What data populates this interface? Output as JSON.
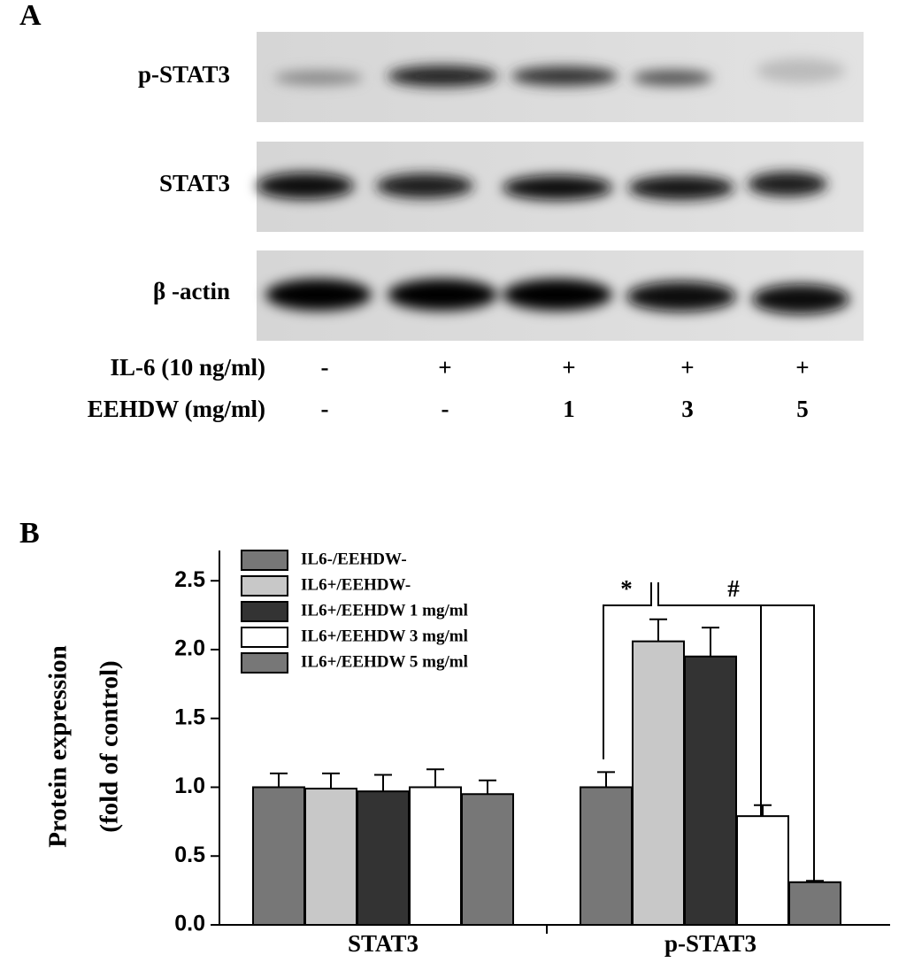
{
  "blot": {
    "panel_label": "A",
    "rows": [
      "p-STAT3",
      "STAT3",
      "β -actin"
    ],
    "treatments": [
      {
        "label": "IL-6 (10 ng/ml)",
        "lanes": [
          "-",
          "+",
          "+",
          "+",
          "+"
        ]
      },
      {
        "label": "EEHDW (mg/ml)",
        "lanes": [
          "-",
          "-",
          "1",
          "3",
          "5"
        ]
      }
    ]
  },
  "chart_data": {
    "type": "bar",
    "panel_label": "B",
    "y_label": [
      "Protein expression",
      "(fold of  control)"
    ],
    "categories": [
      "STAT3",
      "p-STAT3"
    ],
    "series": [
      {
        "name": "IL6-/EEHDW-",
        "color": "#777777",
        "values": [
          1.0,
          1.0
        ],
        "errors": [
          0.1,
          0.11
        ]
      },
      {
        "name": "IL6+/EEHDW-",
        "color": "#c8c8c8",
        "values": [
          0.99,
          2.06
        ],
        "errors": [
          0.11,
          0.16
        ]
      },
      {
        "name": "IL6+/EEHDW 1 mg/ml",
        "color": "#333333",
        "values": [
          0.97,
          1.95
        ],
        "errors": [
          0.12,
          0.21
        ]
      },
      {
        "name": "IL6+/EEHDW 3 mg/ml",
        "color": "#ffffff",
        "values": [
          1.0,
          0.79
        ],
        "errors": [
          0.13,
          0.08
        ]
      },
      {
        "name": "IL6+/EEHDW 5 mg/ml",
        "color": "#777777",
        "values": [
          0.95,
          0.31
        ],
        "errors": [
          0.1,
          0.01
        ]
      }
    ],
    "annotations": [
      "*",
      "#"
    ],
    "ylim": [
      0,
      2.72
    ],
    "yticks": [
      {
        "value": 0,
        "label": "0.0"
      },
      {
        "value": 0.5,
        "label": "0.5"
      },
      {
        "value": 1,
        "label": "1.0"
      },
      {
        "value": 1.5,
        "label": "1.5"
      },
      {
        "value": 2,
        "label": "2.0"
      },
      {
        "value": 2.5,
        "label": "2.5"
      }
    ],
    "legend": "upper left"
  }
}
